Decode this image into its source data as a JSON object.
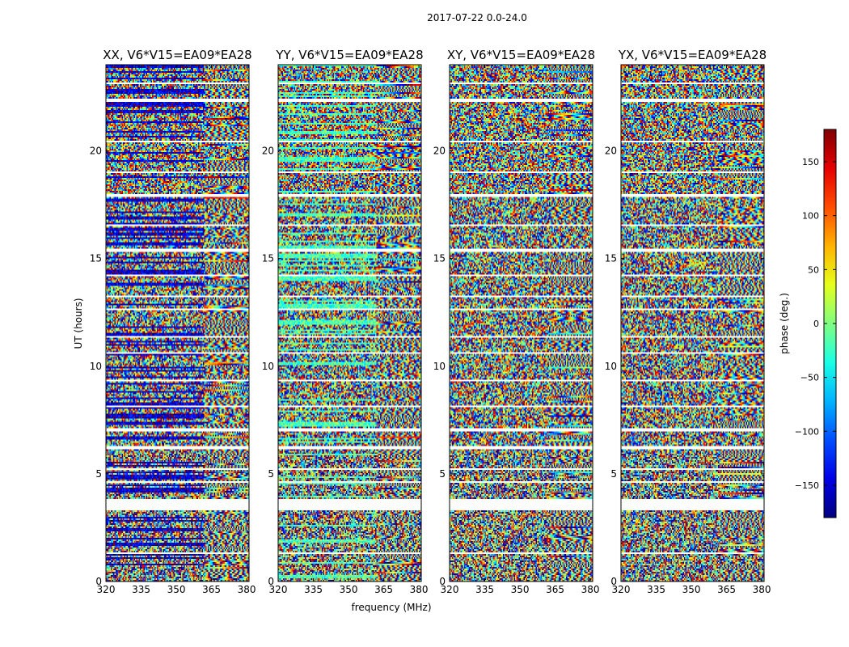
{
  "figure": {
    "suptitle": "2017-07-22 0.0-24.0"
  },
  "chart_data": {
    "type": "heatmap",
    "title": "2017-07-22 0.0-24.0",
    "xlabel": "frequency (MHz)",
    "ylabel": "UT (hours)",
    "xlim": [
      320,
      381
    ],
    "ylim": [
      0,
      24
    ],
    "x_ticks": [
      "320",
      "335",
      "350",
      "365",
      "380"
    ],
    "x_tick_values": [
      320,
      335,
      350,
      365,
      380
    ],
    "y_ticks": [
      "0",
      "5",
      "10",
      "15",
      "20"
    ],
    "y_tick_values": [
      0,
      5,
      10,
      15,
      20
    ],
    "panels": [
      {
        "name": "XX",
        "title": "XX, V6*V15=EA09*EA28",
        "low_freq_bias": -150
      },
      {
        "name": "YY",
        "title": "YY, V6*V15=EA09*EA28",
        "low_freq_bias": -20
      },
      {
        "name": "XY",
        "title": "XY, V6*V15=EA09*EA28",
        "low_freq_bias": null
      },
      {
        "name": "YX",
        "title": "YX, V6*V15=EA09*EA28",
        "low_freq_bias": null
      }
    ],
    "colorbar": {
      "label": "phase (deg.)",
      "range": [
        -180,
        180
      ],
      "colormap": "jet",
      "ticks": [
        "150",
        "100",
        "50",
        "0",
        "−50",
        "−100",
        "−150"
      ],
      "tick_values": [
        150,
        100,
        50,
        0,
        -50,
        -100,
        -150
      ]
    },
    "flagged_ut_bands_hours": [
      [
        3.3,
        3.85
      ],
      [
        7.0,
        7.12
      ],
      [
        6.15,
        6.3
      ],
      [
        10.55,
        10.65
      ],
      [
        15.3,
        15.45
      ],
      [
        17.85,
        18.0
      ],
      [
        19.0,
        19.08
      ],
      [
        11.3,
        11.38
      ],
      [
        4.55,
        4.62
      ],
      [
        13.2,
        13.28
      ],
      [
        22.3,
        22.4
      ],
      [
        1.25,
        1.32
      ],
      [
        2.0,
        2.06
      ],
      [
        8.1,
        8.16
      ],
      [
        16.5,
        16.58
      ],
      [
        5.2,
        5.26
      ],
      [
        20.4,
        20.46
      ],
      [
        14.2,
        14.26
      ],
      [
        9.3,
        9.36
      ],
      [
        23.1,
        23.16
      ],
      [
        12.6,
        12.66
      ],
      [
        0.5,
        0.56
      ]
    ]
  }
}
